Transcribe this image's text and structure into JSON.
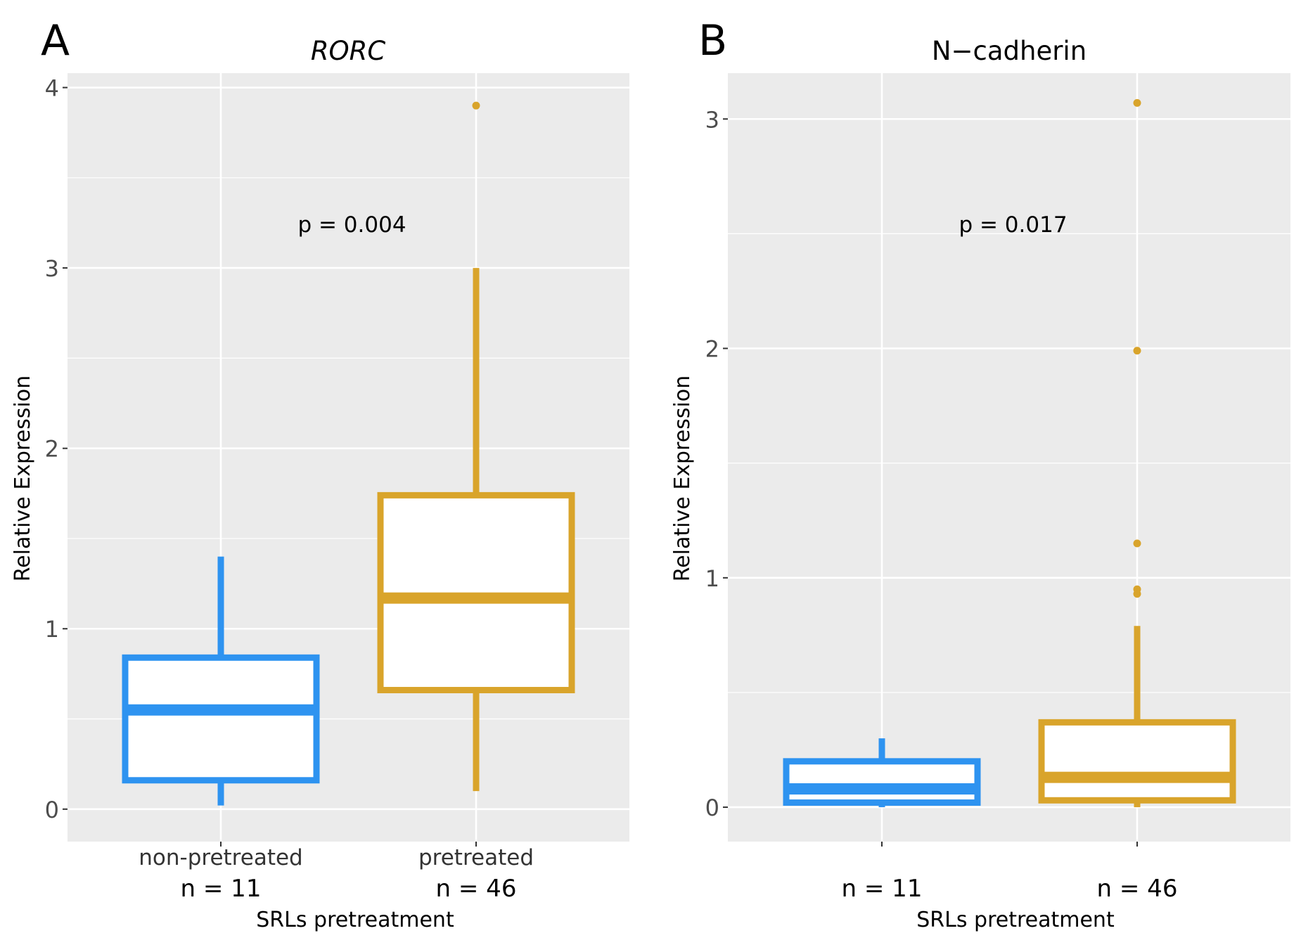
{
  "colors": {
    "panel_bg": "#EBEBEB",
    "grid": "#FFFFFF",
    "non_pretreated": "#2E93F0",
    "pretreated": "#D9A42B",
    "axis_text": "#4D4D4D",
    "text": "#000000"
  },
  "chart_data": [
    {
      "type": "box",
      "panel_label": "A",
      "title": "RORC",
      "title_style": "italic",
      "ylabel": "Relative Expression",
      "xlabel": "SRLs pretreatment",
      "ylim": [
        -0.18,
        4.08
      ],
      "yticks": [
        "0",
        "1",
        "2",
        "3",
        "4"
      ],
      "grid": true,
      "annotation": "p = 0.004",
      "categories": [
        "non-pretreated",
        "pretreated"
      ],
      "n_labels": [
        "n = 11",
        "n = 46"
      ],
      "boxes": [
        {
          "group": "non-pretreated",
          "whisker_low": 0.02,
          "q1": 0.16,
          "median": 0.55,
          "q3": 0.84,
          "whisker_high": 1.4,
          "outliers": []
        },
        {
          "group": "pretreated",
          "whisker_low": 0.1,
          "q1": 0.66,
          "median": 1.17,
          "q3": 1.74,
          "whisker_high": 3.0,
          "outliers": [
            3.9
          ]
        }
      ]
    },
    {
      "type": "box",
      "panel_label": "B",
      "title": "N−cadherin",
      "title_style": "normal",
      "ylabel": "Relative Expression",
      "xlabel": "SRLs pretreatment",
      "ylim": [
        -0.15,
        3.2
      ],
      "yticks": [
        "0",
        "1",
        "2",
        "3"
      ],
      "grid": true,
      "annotation": "p = 0.017",
      "categories": [
        "",
        ""
      ],
      "n_labels": [
        "n = 11",
        "n = 46"
      ],
      "boxes": [
        {
          "group": "non-pretreated",
          "whisker_low": 0.0,
          "q1": 0.02,
          "median": 0.08,
          "q3": 0.2,
          "whisker_high": 0.3,
          "outliers": []
        },
        {
          "group": "pretreated",
          "whisker_low": 0.0,
          "q1": 0.03,
          "median": 0.13,
          "q3": 0.37,
          "whisker_high": 0.79,
          "outliers": [
            0.93,
            0.95,
            1.15,
            1.99,
            3.07
          ]
        }
      ]
    }
  ]
}
